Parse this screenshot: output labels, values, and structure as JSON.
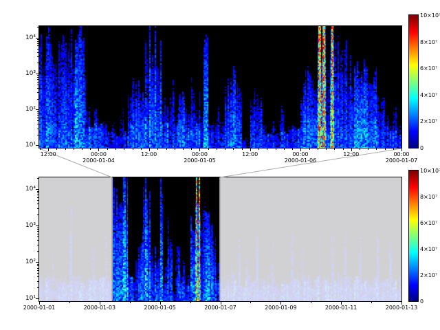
{
  "figure": {
    "background": "#ffffff",
    "plot_background": "#000000",
    "colormap": "jet",
    "fade_color": "rgba(240,240,244,0.87)",
    "selection_edge_color": "#9a9a9a",
    "connector_color": "#aaaaaa"
  },
  "chart_data": [
    {
      "type": "heatmap",
      "panel": "detail",
      "title": "",
      "xlabel": "",
      "ylabel": "",
      "x_axis": {
        "range": [
          "2000-01-03 12:00",
          "2000-01-07 00:00"
        ],
        "minor_step": 0.023222,
        "minor_phase": 0.025,
        "ticks": [
          {
            "label": "12:00",
            "pos": 0.025
          },
          {
            "label": "00:00",
            "pos": 0.164,
            "day": "2000-01-04"
          },
          {
            "label": "12:00",
            "pos": 0.303
          },
          {
            "label": "00:00",
            "pos": 0.443,
            "day": "2000-01-05"
          },
          {
            "label": "12:00",
            "pos": 0.582
          },
          {
            "label": "00:00",
            "pos": 0.721,
            "day": "2000-01-06"
          },
          {
            "label": "12:00",
            "pos": 0.861
          },
          {
            "label": "00:00",
            "pos": 1.0,
            "day": "2000-01-07"
          }
        ]
      },
      "y_axis": {
        "scale": "log",
        "range": [
          10,
          10000
        ],
        "ticks": [
          {
            "label": "10⁴",
            "pos": 0.095
          },
          {
            "label": "10³",
            "pos": 0.39
          },
          {
            "label": "10²",
            "pos": 0.685
          },
          {
            "label": "10¹",
            "pos": 0.98
          }
        ]
      },
      "colorbar": {
        "min": 0,
        "max": 100000000,
        "tick_labels": [
          "0",
          "2×10⁷",
          "4×10⁷",
          "6×10⁷",
          "8×10⁷",
          "10×10⁷"
        ]
      },
      "heatmap": {
        "columns": 86,
        "base": "66666666666555533333355556666555555555563333444411444444444444666655555555666666555544",
        "height": "98998989999323221213145548998435344353492232566510454212131221566599698787676766453232",
        "bright": "56565665767434332323245545765443445443463333455421444333334333556599395454566865443332",
        "rainbow_cols": [
          66,
          67,
          69
        ]
      }
    },
    {
      "type": "heatmap",
      "panel": "overview",
      "title": "",
      "xlabel": "",
      "ylabel": "",
      "x_axis": {
        "range": [
          "2000-01-01",
          "2000-01-13"
        ],
        "minor_step": 0.083333,
        "minor_phase": 0,
        "ticks": [
          {
            "label": "2000-01-01",
            "pos": 0
          },
          {
            "label": "2000-01-03",
            "pos": 0.1667
          },
          {
            "label": "2000-01-05",
            "pos": 0.3333
          },
          {
            "label": "2000-01-07",
            "pos": 0.5
          },
          {
            "label": "2000-01-09",
            "pos": 0.6667
          },
          {
            "label": "2000-01-11",
            "pos": 0.8333
          },
          {
            "label": "2000-01-13",
            "pos": 1.0
          }
        ]
      },
      "y_axis": {
        "scale": "log",
        "range": [
          10,
          10000
        ],
        "ticks": [
          {
            "label": "10⁴",
            "pos": 0.095
          },
          {
            "label": "10³",
            "pos": 0.39
          },
          {
            "label": "10²",
            "pos": 0.685
          },
          {
            "label": "10¹",
            "pos": 0.98
          }
        ]
      },
      "colorbar": {
        "min": 0,
        "max": 100000000,
        "tick_labels": [
          "0",
          "2×10⁷",
          "4×10⁷",
          "6×10⁷",
          "8×10⁷",
          "10×10⁷"
        ]
      },
      "selection": {
        "from": 0.201,
        "to": 0.499
      },
      "heatmap": {
        "columns": 144,
        "base": "445445544544554454445544554446666665533355665555633441444444665555666554445445544544445445544544445445544544445445544544445445544544445445544544",
        "height": "212225122222712221222512216219999993223458985445923661542322669988776533212232152132216221225221221262215222122521226122252212261221225221252212",
        "bright": "323334233233423322333233342336666774333455754454633552443343569955686433323334232333334233223332233423322333323323423233332332234233323342332233",
        "rainbow_cols": [
          62,
          63
        ]
      }
    }
  ]
}
